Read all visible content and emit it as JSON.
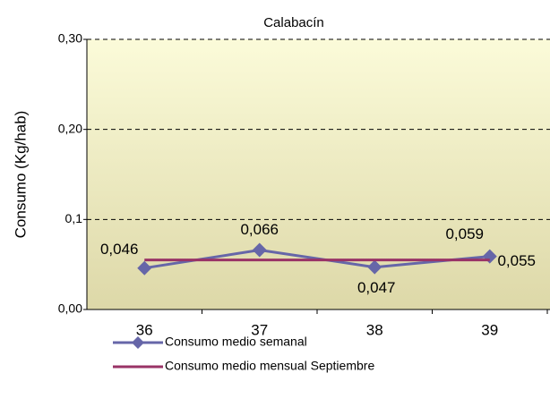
{
  "chart_data": {
    "type": "line",
    "title": "Calabacín",
    "ylabel": "Consumo (Kg/hab)",
    "categories": [
      "36",
      "37",
      "38",
      "39"
    ],
    "series": [
      {
        "name": "Consumo medio semanal",
        "color": "#6666a8",
        "values": [
          0.046,
          0.066,
          0.047,
          0.059
        ],
        "value_labels": [
          "0,046",
          "0,066",
          "0,047",
          "0,059"
        ],
        "marker": "diamond"
      },
      {
        "name": "Consumo medio mensual Septiembre",
        "color": "#993366",
        "values": [
          0.055,
          0.055,
          0.055,
          0.055
        ],
        "value_labels": [
          null,
          null,
          null,
          "0,055"
        ]
      }
    ],
    "ylim": [
      0,
      0.3
    ],
    "yticks": [
      {
        "value": 0,
        "label": "0,00"
      },
      {
        "value": 0.1,
        "label": "0,1"
      },
      {
        "value": 0.2,
        "label": "0,20"
      },
      {
        "value": 0.3,
        "label": "0,30"
      }
    ],
    "grid": true,
    "legend": "bottom"
  }
}
